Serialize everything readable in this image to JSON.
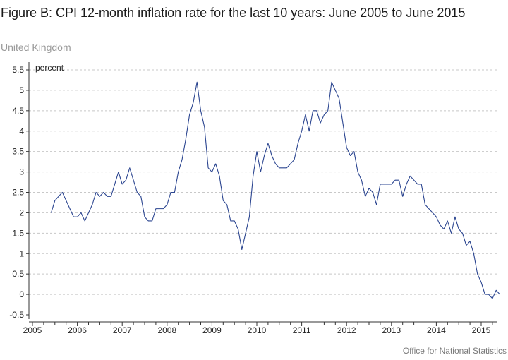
{
  "header": {
    "title": "Figure B: CPI 12-month inflation rate for the last 10 years: June 2005 to June 2015",
    "subtitle": "United Kingdom"
  },
  "footer": {
    "source": "Office for National Statistics"
  },
  "colors": {
    "line": "#2b4590",
    "grid": "#c8c8c8",
    "axis": "#333333",
    "text": "#222222"
  },
  "chart_data": {
    "type": "line",
    "title": "Figure B: CPI 12-month inflation rate for the last 10 years: June 2005 to June 2015",
    "subtitle": "United Kingdom",
    "ylabel": "percent",
    "xlabel": "",
    "ylim": [
      -0.5,
      5.5
    ],
    "y_ticks": [
      "5.5",
      "5",
      "4.5",
      "4",
      "3.5",
      "3",
      "2.5",
      "2",
      "1.5",
      "1",
      "0.5",
      "0",
      "-0.5"
    ],
    "x_ticks": [
      "2005",
      "2006",
      "2007",
      "2008",
      "2009",
      "2010",
      "2011",
      "2012",
      "2013",
      "2014",
      "2015"
    ],
    "grid": "horizontal dashed",
    "start_month": "2005-06",
    "series": [
      {
        "name": "",
        "values": [
          2.0,
          2.3,
          2.4,
          2.5,
          2.3,
          2.1,
          1.9,
          1.9,
          2.0,
          1.8,
          2.0,
          2.2,
          2.5,
          2.4,
          2.5,
          2.4,
          2.4,
          2.7,
          3.0,
          2.7,
          2.8,
          3.1,
          2.8,
          2.5,
          2.4,
          1.9,
          1.8,
          1.8,
          2.1,
          2.1,
          2.1,
          2.2,
          2.5,
          2.5,
          3.0,
          3.3,
          3.8,
          4.4,
          4.7,
          5.2,
          4.5,
          4.1,
          3.1,
          3.0,
          3.2,
          2.9,
          2.3,
          2.2,
          1.8,
          1.8,
          1.6,
          1.1,
          1.5,
          1.9,
          2.9,
          3.5,
          3.0,
          3.4,
          3.7,
          3.4,
          3.2,
          3.1,
          3.1,
          3.1,
          3.2,
          3.3,
          3.7,
          4.0,
          4.4,
          4.0,
          4.5,
          4.5,
          4.2,
          4.4,
          4.5,
          5.2,
          5.0,
          4.8,
          4.2,
          3.6,
          3.4,
          3.5,
          3.0,
          2.8,
          2.4,
          2.6,
          2.5,
          2.2,
          2.7,
          2.7,
          2.7,
          2.7,
          2.8,
          2.8,
          2.4,
          2.7,
          2.9,
          2.8,
          2.7,
          2.7,
          2.2,
          2.1,
          2.0,
          1.9,
          1.7,
          1.6,
          1.8,
          1.5,
          1.9,
          1.6,
          1.5,
          1.2,
          1.3,
          1.0,
          0.5,
          0.3,
          0.0,
          0.0,
          -0.1,
          0.1,
          0.0
        ]
      }
    ]
  }
}
